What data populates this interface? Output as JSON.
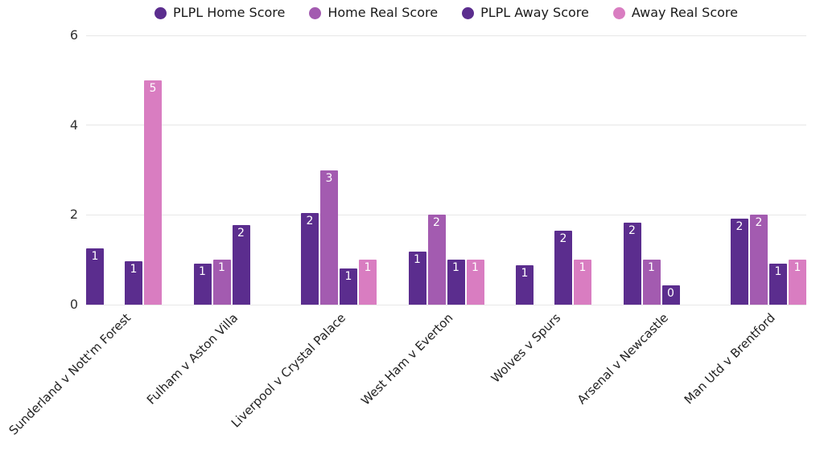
{
  "chart_data": {
    "type": "bar",
    "title": "",
    "categories": [
      "Sunderland v Nott'm Forest",
      "Fulham v Aston Villa",
      "Liverpool v Crystal Palace",
      "West Ham v Everton",
      "Wolves v Spurs",
      "Arsenal v Newcastle",
      "Man Utd v Brentford"
    ],
    "series": [
      {
        "name": "PLPL Home Score",
        "color": "#5b2d8e",
        "values": [
          1.25,
          0.92,
          2.05,
          1.18,
          0.87,
          1.83,
          1.92
        ],
        "labels": [
          "1",
          "1",
          "2",
          "1",
          "1",
          "2",
          "2"
        ]
      },
      {
        "name": "Home Real Score",
        "color": "#a35bb0",
        "values": [
          0,
          1,
          3,
          2,
          0,
          1,
          2
        ],
        "labels": [
          "",
          "1",
          "3",
          "2",
          "",
          "1",
          "2"
        ]
      },
      {
        "name": "PLPL Away Score",
        "color": "#5b2d8e",
        "values": [
          0.96,
          1.78,
          0.8,
          1.0,
          1.64,
          0.43,
          0.92
        ],
        "labels": [
          "1",
          "2",
          "1",
          "1",
          "2",
          "0",
          "1"
        ]
      },
      {
        "name": "Away Real Score",
        "color": "#d97dc1",
        "values": [
          5,
          0,
          1,
          1,
          1,
          0,
          1
        ],
        "labels": [
          "5",
          "",
          "1",
          "1",
          "1",
          "",
          "1"
        ]
      }
    ],
    "xlabel": "",
    "ylabel": "",
    "ylim": [
      0,
      6
    ],
    "yticks": [
      0,
      2,
      4,
      6
    ],
    "grid": true,
    "legend_position": "top",
    "value_label_color": "#ffffff",
    "gridline_color": "#e7e7e7",
    "axis_text_color": "#333333"
  }
}
